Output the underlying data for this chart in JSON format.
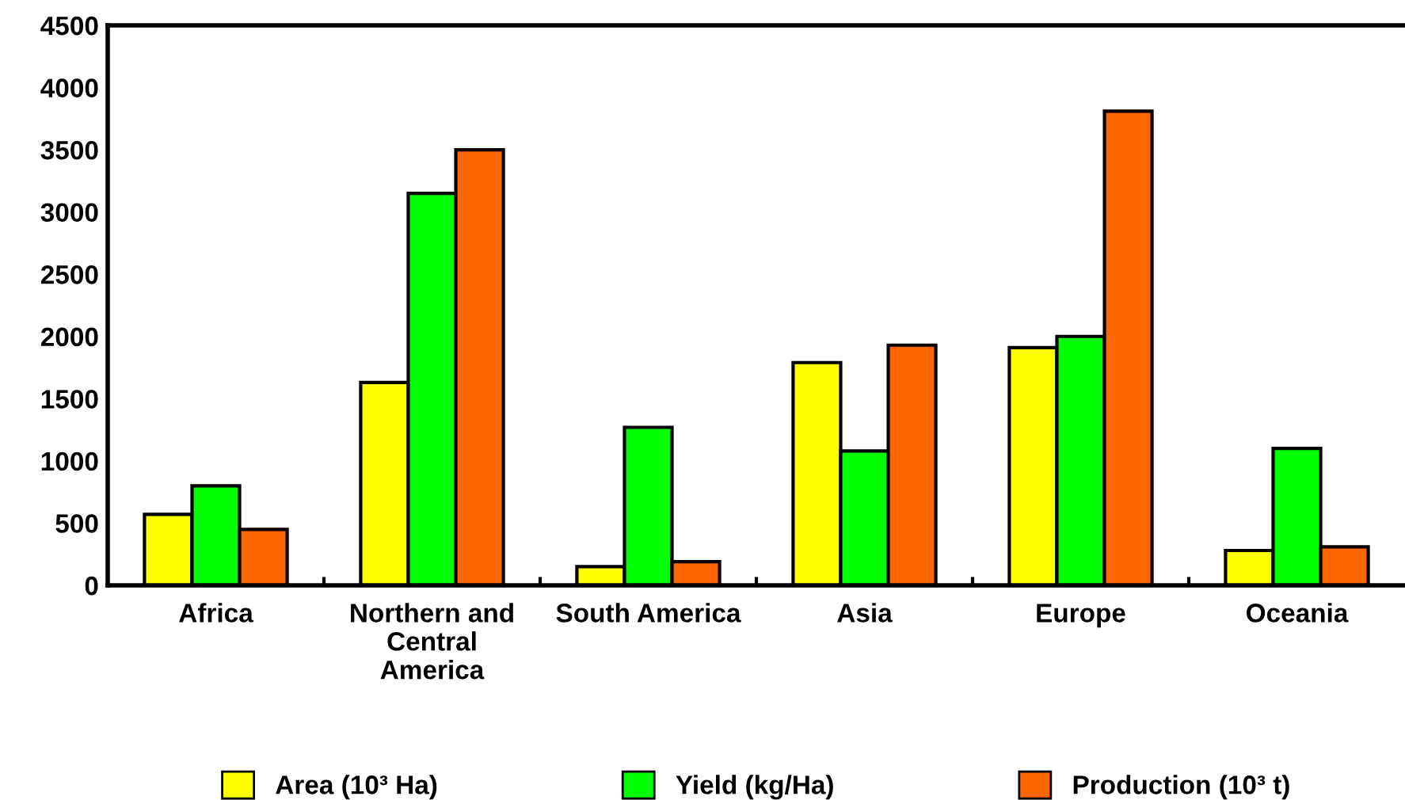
{
  "chart_data": {
    "type": "bar",
    "categories": [
      "Africa",
      "Northern and\nCentral\nAmerica",
      "South America",
      "Asia",
      "Europe",
      "Oceania"
    ],
    "series": [
      {
        "name": "Area (10³ Ha)",
        "color": "#ffff00",
        "values": [
          570,
          1630,
          150,
          1790,
          1910,
          280
        ]
      },
      {
        "name": "Yield (kg/Ha)",
        "color": "#00ff00",
        "values": [
          800,
          3150,
          1270,
          1080,
          2000,
          1100
        ]
      },
      {
        "name": "Production (10³ t)",
        "color": "#ff6600",
        "values": [
          450,
          3500,
          190,
          1930,
          3810,
          310
        ]
      }
    ],
    "ylim": [
      0,
      4500
    ],
    "yticks": [
      0,
      500,
      1000,
      1500,
      2000,
      2500,
      3000,
      3500,
      4000,
      4500
    ],
    "legend": "bottom",
    "grid": false
  }
}
